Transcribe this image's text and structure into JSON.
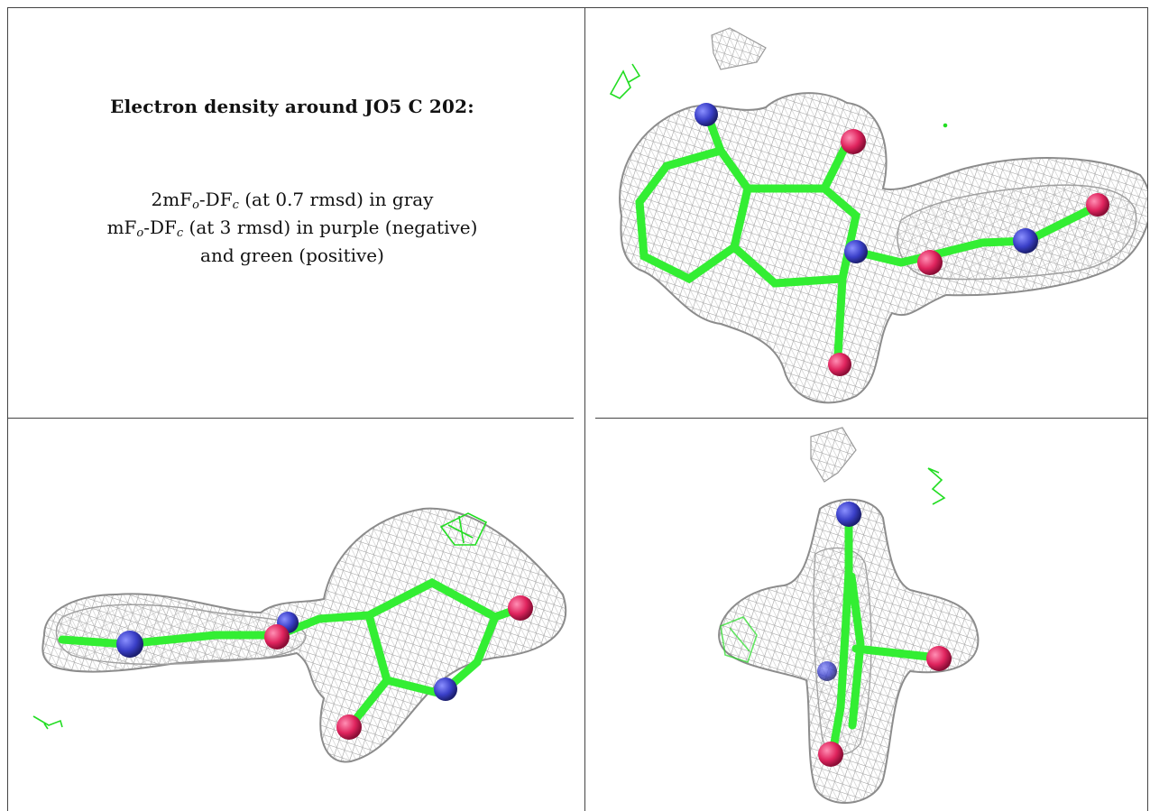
{
  "caption": {
    "title": "Electron density around JO5 C 202:",
    "line1": {
      "pre": "2mF",
      "sub1": "o",
      "mid": "-DF",
      "sub2": "c",
      "post": " (at 0.7 rmsd) in gray"
    },
    "line2": {
      "pre": "mF",
      "sub1": "o",
      "mid": "-DF",
      "sub2": "c",
      "post": " (at 3 rmsd) in purple (negative)"
    },
    "line3": "and green (positive)"
  },
  "colors": {
    "mesh_gray": "#8c8c8c",
    "bond_green": "#33ee33",
    "nitrogen_blue": "#3a3fc8",
    "oxygen_red": "#e0245e",
    "positive_density_green": "#22dd22",
    "grid_line": "#444444"
  },
  "views": [
    {
      "name": "view-top-right"
    },
    {
      "name": "view-bottom-left"
    },
    {
      "name": "view-bottom-right"
    }
  ]
}
